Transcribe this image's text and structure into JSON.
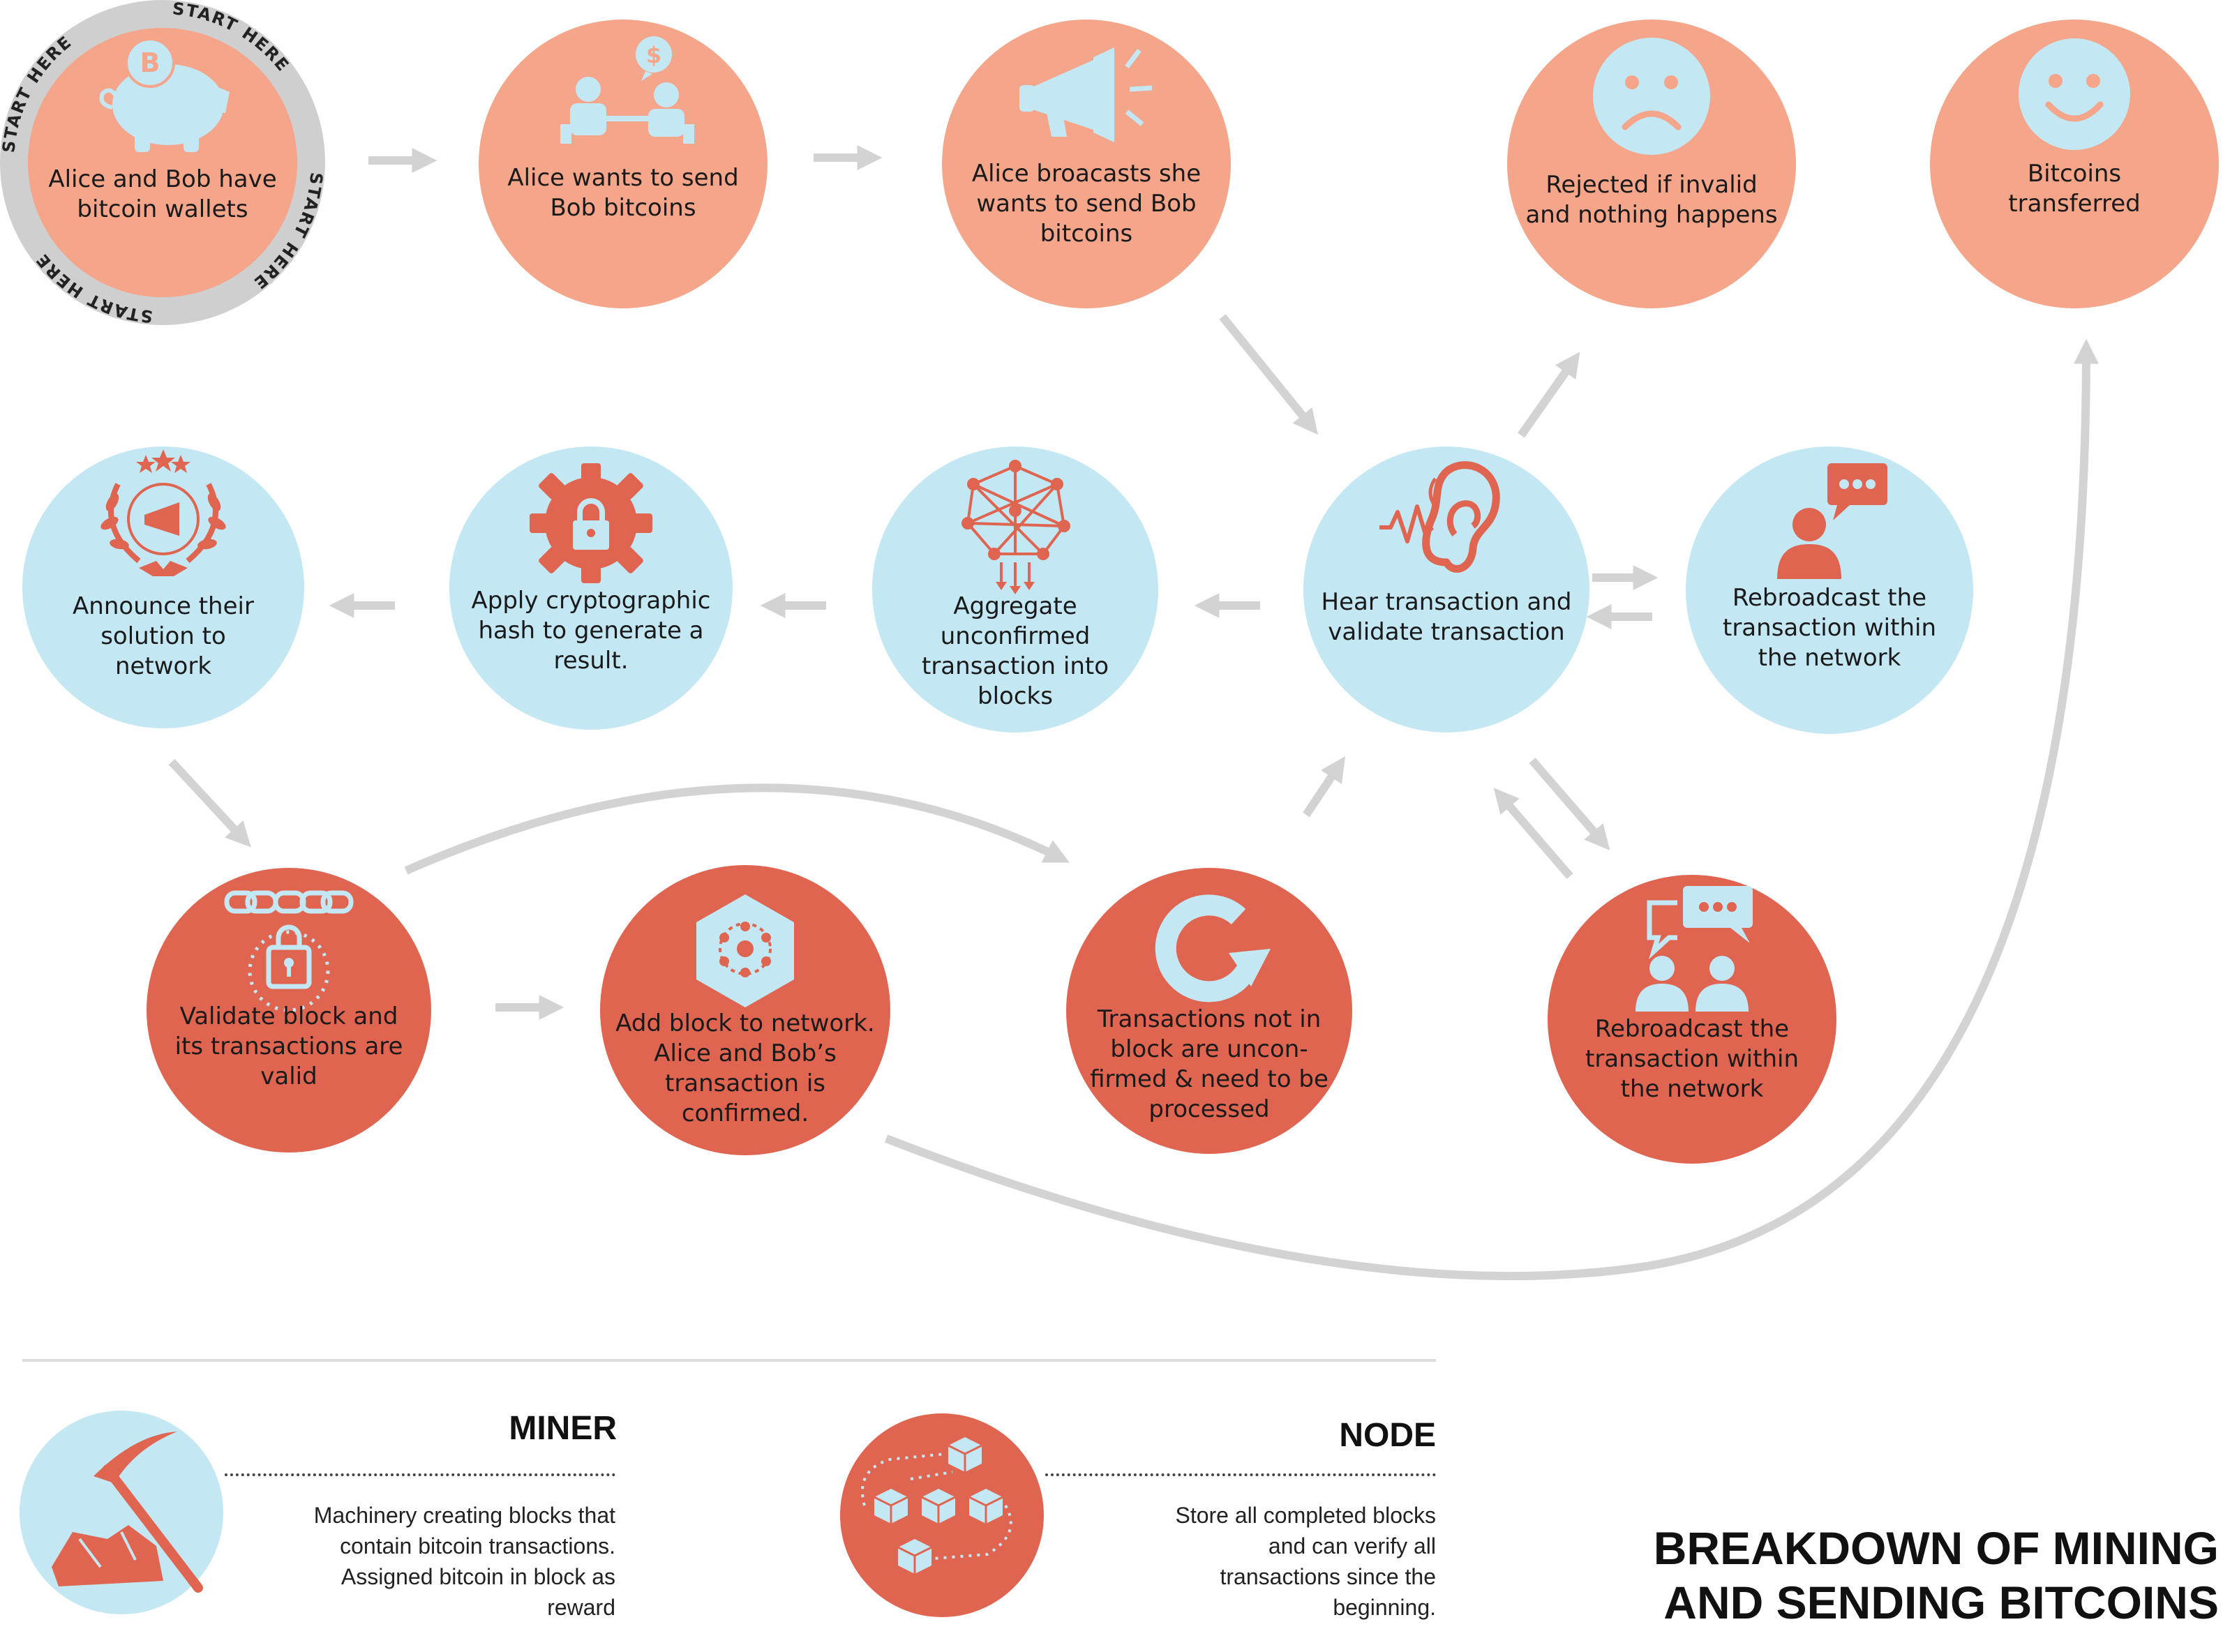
{
  "start": {
    "ring_text": "START HERE"
  },
  "steps": {
    "wallets": "Alice and Bob have bitcoin wallets",
    "wants_send": "Alice wants to send Bob bitcoins",
    "broadcasts": "Alice broacasts she wants to send Bob bitcoins",
    "rejected": "Rejected if invalid and nothing happens",
    "transferred": "Bitcoins transferred",
    "announce": "Announce their solution to network",
    "hash": "Apply cryptographic hash to generate a result.",
    "aggregate": "Aggregate unconfirmed transaction into blocks",
    "hear": "Hear transaction and validate transaction",
    "rebroadcast_top": "Rebroadcast the transaction within the network",
    "validate_block": "Validate block and its transactions are valid",
    "add_block": "Add block to network. Alice and Bob’s transaction is confirmed.",
    "not_in_block": "Transactions not in block are uncon- firmed & need to be processed",
    "rebroadcast_bottom": "Rebroadcast the transaction within the network"
  },
  "legend": {
    "miner": {
      "title": "MINER",
      "desc": "Machinery creating blocks that contain bitcoin transactions. Assigned bitcoin in block as reward"
    },
    "node": {
      "title": "NODE",
      "desc": "Store all completed blocks and can verify all transactions since the beginning."
    }
  },
  "title": {
    "line1": "BREAKDOWN OF MINING",
    "line2": "AND SENDING BITCOINS"
  },
  "colors": {
    "salmon": "#f4a58a",
    "sky": "#c3e7f3",
    "red": "#e06551",
    "arrow": "#d3d3d3",
    "ring": "#cfcfcf"
  }
}
